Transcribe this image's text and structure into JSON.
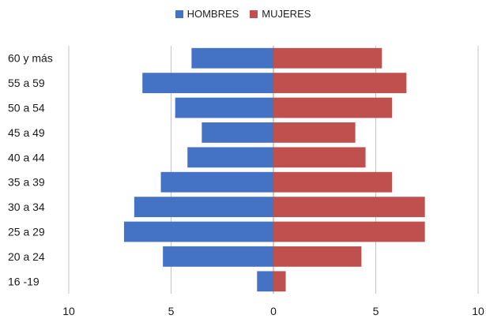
{
  "chart_data": {
    "type": "bar",
    "orientation": "horizontal",
    "layout": "population-pyramid",
    "categories": [
      "60 y más",
      "55 a 59",
      "50 a 54",
      "45 a 49",
      "40 a 44",
      "35 a 39",
      "30 a 34",
      "25 a 29",
      "20 a 24",
      "16 -19"
    ],
    "series": [
      {
        "name": "HOMBRES",
        "color": "#4472C4",
        "side": "left",
        "values": [
          4.0,
          6.4,
          4.8,
          3.5,
          4.2,
          5.5,
          6.8,
          7.3,
          5.4,
          0.8
        ]
      },
      {
        "name": "MUJERES",
        "color": "#C0504D",
        "side": "right",
        "values": [
          5.3,
          6.5,
          5.8,
          4.0,
          4.5,
          5.8,
          7.4,
          7.4,
          4.3,
          0.6
        ]
      }
    ],
    "xticks": [
      "10",
      "5",
      "0",
      "5",
      "10"
    ],
    "xlim": [
      -10,
      10
    ],
    "grid": true,
    "legend": "top-center"
  }
}
